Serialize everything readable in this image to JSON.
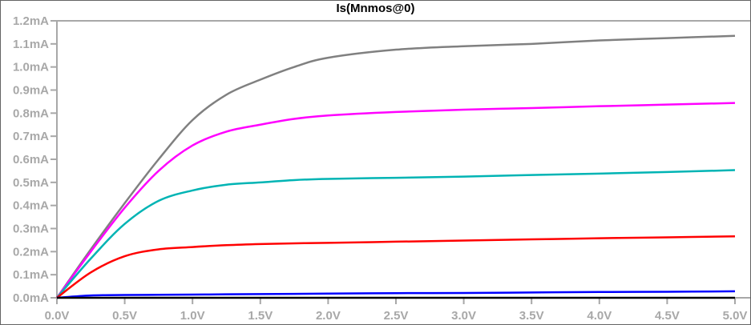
{
  "chart_data": {
    "type": "line",
    "title": "Is(Mnmos@0)",
    "xlabel": "",
    "ylabel": "",
    "xlim": [
      0,
      5
    ],
    "ylim": [
      0,
      1.2
    ],
    "grid": false,
    "x_ticks": [
      "0.0V",
      "0.5V",
      "1.0V",
      "1.5V",
      "2.0V",
      "2.5V",
      "3.0V",
      "3.5V",
      "4.0V",
      "4.5V",
      "5.0V"
    ],
    "y_ticks": [
      "0.0mA",
      "0.1mA",
      "0.2mA",
      "0.3mA",
      "0.4mA",
      "0.5mA",
      "0.6mA",
      "0.7mA",
      "0.8mA",
      "0.9mA",
      "1.0mA",
      "1.1mA",
      "1.2mA"
    ],
    "x": [
      0,
      0.25,
      0.5,
      0.75,
      1,
      1.25,
      1.5,
      1.75,
      2,
      2.5,
      3,
      3.5,
      4,
      4.5,
      5
    ],
    "series": [
      {
        "color": "#808080",
        "values": [
          0,
          0.21,
          0.41,
          0.6,
          0.77,
          0.88,
          0.945,
          1.0,
          1.04,
          1.075,
          1.09,
          1.1,
          1.115,
          1.125,
          1.135
        ]
      },
      {
        "color": "#ff00ff",
        "values": [
          0,
          0.2,
          0.39,
          0.55,
          0.66,
          0.72,
          0.75,
          0.775,
          0.79,
          0.805,
          0.815,
          0.822,
          0.83,
          0.837,
          0.844
        ]
      },
      {
        "color": "#00b4b4",
        "values": [
          0,
          0.17,
          0.32,
          0.42,
          0.465,
          0.49,
          0.5,
          0.51,
          0.515,
          0.52,
          0.525,
          0.532,
          0.538,
          0.545,
          0.553
        ]
      },
      {
        "color": "#ff0000",
        "values": [
          0,
          0.11,
          0.18,
          0.21,
          0.22,
          0.228,
          0.233,
          0.236,
          0.238,
          0.243,
          0.248,
          0.253,
          0.258,
          0.262,
          0.266
        ]
      },
      {
        "color": "#0000ff",
        "values": [
          0,
          0.01,
          0.012,
          0.013,
          0.014,
          0.015,
          0.016,
          0.017,
          0.018,
          0.02,
          0.021,
          0.023,
          0.025,
          0.026,
          0.028
        ]
      },
      {
        "color": "#000000",
        "values": [
          0,
          0,
          0,
          0,
          0,
          0,
          0,
          0,
          0,
          0,
          0,
          0,
          0,
          0,
          0
        ]
      }
    ]
  }
}
